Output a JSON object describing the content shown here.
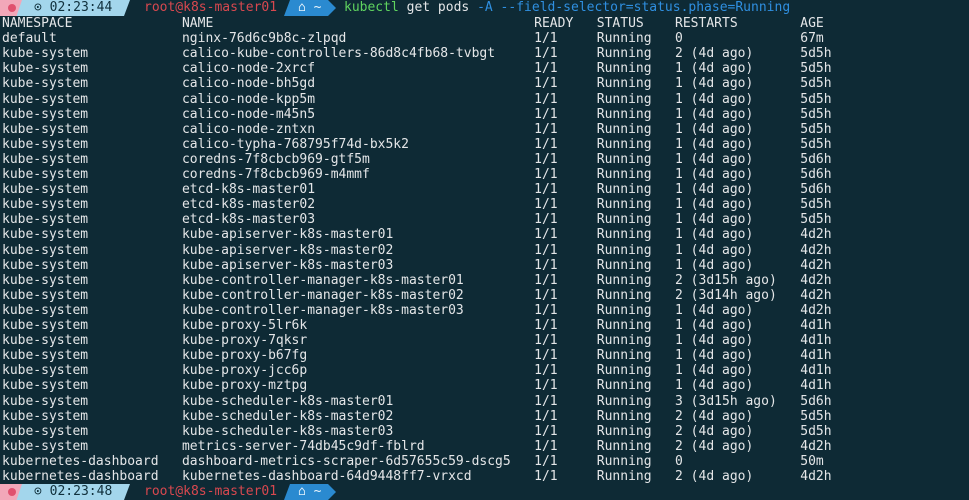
{
  "top_prompt": {
    "icon": "status-dot-icon",
    "time": "⊙ 02:23:44",
    "user_host": "root@k8s-master01",
    "dir": "⌂ ~",
    "command": {
      "program": "kubectl",
      "args": "get pods",
      "flags": "-A --field-selector=status.phase=Running"
    }
  },
  "table": {
    "headers": [
      "NAMESPACE",
      "NAME",
      "READY",
      "STATUS",
      "RESTARTS",
      "AGE"
    ],
    "rows": [
      [
        "default",
        "nginx-76d6c9b8c-zlpqd",
        "1/1",
        "Running",
        "0",
        "67m"
      ],
      [
        "kube-system",
        "calico-kube-controllers-86d8c4fb68-tvbgt",
        "1/1",
        "Running",
        "2 (4d ago)",
        "5d5h"
      ],
      [
        "kube-system",
        "calico-node-2xrcf",
        "1/1",
        "Running",
        "1 (4d ago)",
        "5d5h"
      ],
      [
        "kube-system",
        "calico-node-bh5gd",
        "1/1",
        "Running",
        "1 (4d ago)",
        "5d5h"
      ],
      [
        "kube-system",
        "calico-node-kpp5m",
        "1/1",
        "Running",
        "1 (4d ago)",
        "5d5h"
      ],
      [
        "kube-system",
        "calico-node-m45n5",
        "1/1",
        "Running",
        "1 (4d ago)",
        "5d5h"
      ],
      [
        "kube-system",
        "calico-node-zntxn",
        "1/1",
        "Running",
        "1 (4d ago)",
        "5d5h"
      ],
      [
        "kube-system",
        "calico-typha-768795f74d-bx5k2",
        "1/1",
        "Running",
        "1 (4d ago)",
        "5d5h"
      ],
      [
        "kube-system",
        "coredns-7f8cbcb969-gtf5m",
        "1/1",
        "Running",
        "1 (4d ago)",
        "5d6h"
      ],
      [
        "kube-system",
        "coredns-7f8cbcb969-m4mmf",
        "1/1",
        "Running",
        "1 (4d ago)",
        "5d6h"
      ],
      [
        "kube-system",
        "etcd-k8s-master01",
        "1/1",
        "Running",
        "1 (4d ago)",
        "5d6h"
      ],
      [
        "kube-system",
        "etcd-k8s-master02",
        "1/1",
        "Running",
        "1 (4d ago)",
        "5d5h"
      ],
      [
        "kube-system",
        "etcd-k8s-master03",
        "1/1",
        "Running",
        "1 (4d ago)",
        "5d5h"
      ],
      [
        "kube-system",
        "kube-apiserver-k8s-master01",
        "1/1",
        "Running",
        "1 (4d ago)",
        "4d2h"
      ],
      [
        "kube-system",
        "kube-apiserver-k8s-master02",
        "1/1",
        "Running",
        "1 (4d ago)",
        "4d2h"
      ],
      [
        "kube-system",
        "kube-apiserver-k8s-master03",
        "1/1",
        "Running",
        "1 (4d ago)",
        "4d2h"
      ],
      [
        "kube-system",
        "kube-controller-manager-k8s-master01",
        "1/1",
        "Running",
        "2 (3d15h ago)",
        "4d2h"
      ],
      [
        "kube-system",
        "kube-controller-manager-k8s-master02",
        "1/1",
        "Running",
        "2 (3d14h ago)",
        "4d2h"
      ],
      [
        "kube-system",
        "kube-controller-manager-k8s-master03",
        "1/1",
        "Running",
        "1 (4d ago)",
        "4d2h"
      ],
      [
        "kube-system",
        "kube-proxy-5lr6k",
        "1/1",
        "Running",
        "1 (4d ago)",
        "4d1h"
      ],
      [
        "kube-system",
        "kube-proxy-7qksr",
        "1/1",
        "Running",
        "1 (4d ago)",
        "4d1h"
      ],
      [
        "kube-system",
        "kube-proxy-b67fg",
        "1/1",
        "Running",
        "1 (4d ago)",
        "4d1h"
      ],
      [
        "kube-system",
        "kube-proxy-jcc6p",
        "1/1",
        "Running",
        "1 (4d ago)",
        "4d1h"
      ],
      [
        "kube-system",
        "kube-proxy-mztpg",
        "1/1",
        "Running",
        "1 (4d ago)",
        "4d1h"
      ],
      [
        "kube-system",
        "kube-scheduler-k8s-master01",
        "1/1",
        "Running",
        "3 (3d15h ago)",
        "5d6h"
      ],
      [
        "kube-system",
        "kube-scheduler-k8s-master02",
        "1/1",
        "Running",
        "2 (4d ago)",
        "5d5h"
      ],
      [
        "kube-system",
        "kube-scheduler-k8s-master03",
        "1/1",
        "Running",
        "2 (4d ago)",
        "5d5h"
      ],
      [
        "kube-system",
        "metrics-server-74db45c9df-fblrd",
        "1/1",
        "Running",
        "2 (4d ago)",
        "4d2h"
      ],
      [
        "kubernetes-dashboard",
        "dashboard-metrics-scraper-6d57655c59-dscg5",
        "1/1",
        "Running",
        "0",
        "50m"
      ],
      [
        "kubernetes-dashboard",
        "kubernetes-dashboard-64d9448ff7-vrxcd",
        "1/1",
        "Running",
        "2 (4d ago)",
        "4d2h"
      ]
    ]
  },
  "bottom_prompt": {
    "icon": "status-dot-icon",
    "time": "⊙ 02:23:48",
    "user_host": "root@k8s-master01",
    "dir": "⌂ ~"
  }
}
